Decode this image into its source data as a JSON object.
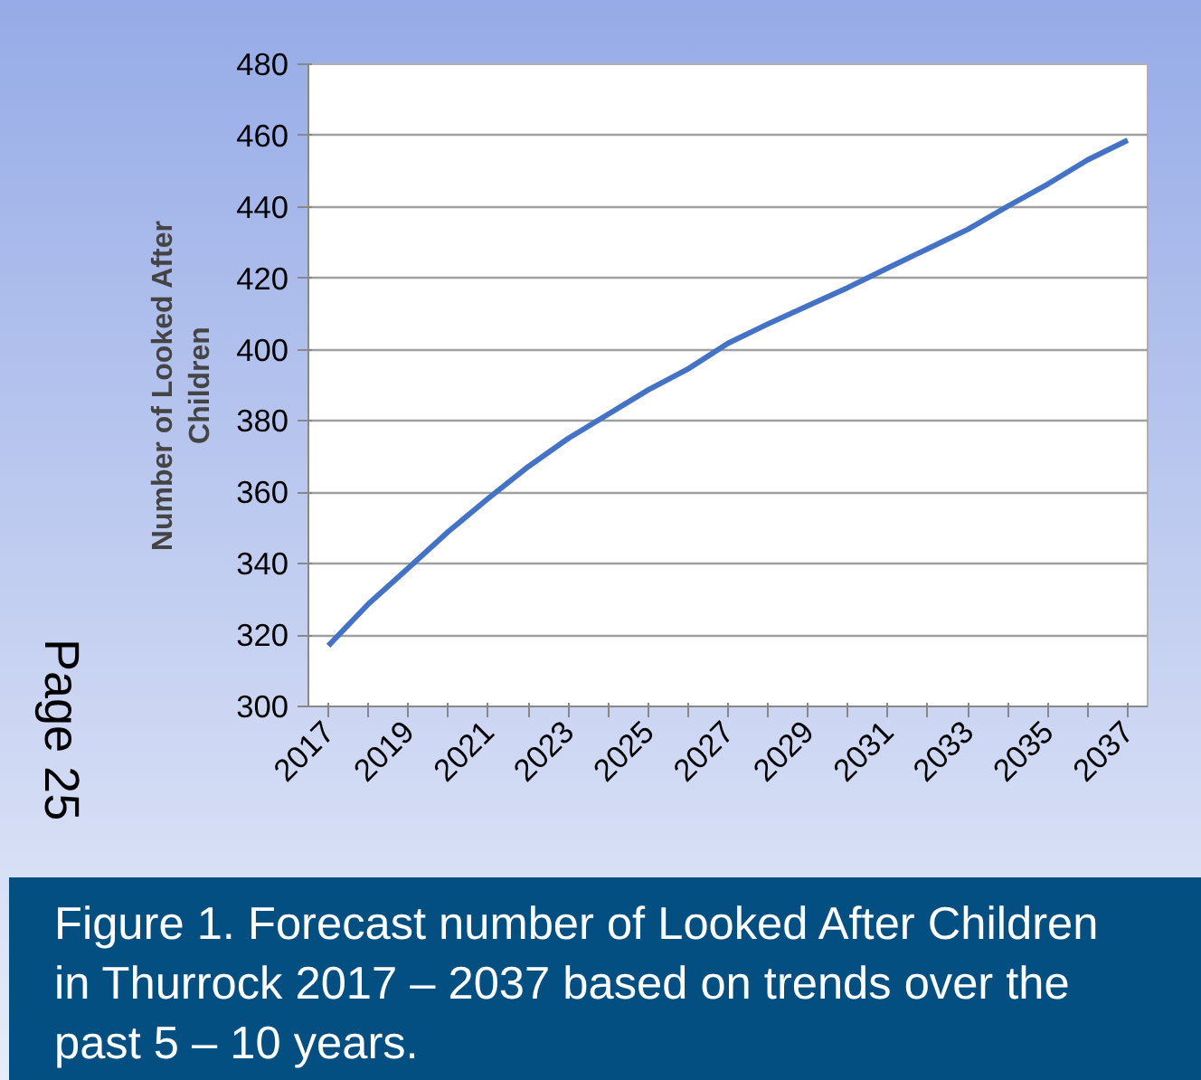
{
  "chart_data": {
    "type": "line",
    "ylabel": "Number of Looked After Children",
    "categories": [
      "2017",
      null,
      "2019",
      null,
      "2021",
      null,
      "2023",
      null,
      "2025",
      null,
      "2027",
      null,
      "2029",
      null,
      "2031",
      null,
      "2033",
      null,
      "2035",
      null,
      "2037"
    ],
    "series": [
      {
        "color": "#4472c4",
        "values": [
          317,
          328.7,
          338.8,
          349,
          358.3,
          367.2,
          375.1,
          381.9,
          388.7,
          394.6,
          401.8,
          407.2,
          412.3,
          417.4,
          422.9,
          428.3,
          433.7,
          440.2,
          446.4,
          453.2,
          458.7
        ]
      }
    ],
    "ylim": [
      300,
      480
    ],
    "yticks": [
      300,
      320,
      340,
      360,
      380,
      400,
      420,
      440,
      460,
      480
    ],
    "grid": "y",
    "annotations": [
      "Page 25",
      "Figure 1. Forecast number of Looked After Children in Thurrock 2017 – 2037 based on trends over the past 5 – 10 years."
    ]
  }
}
